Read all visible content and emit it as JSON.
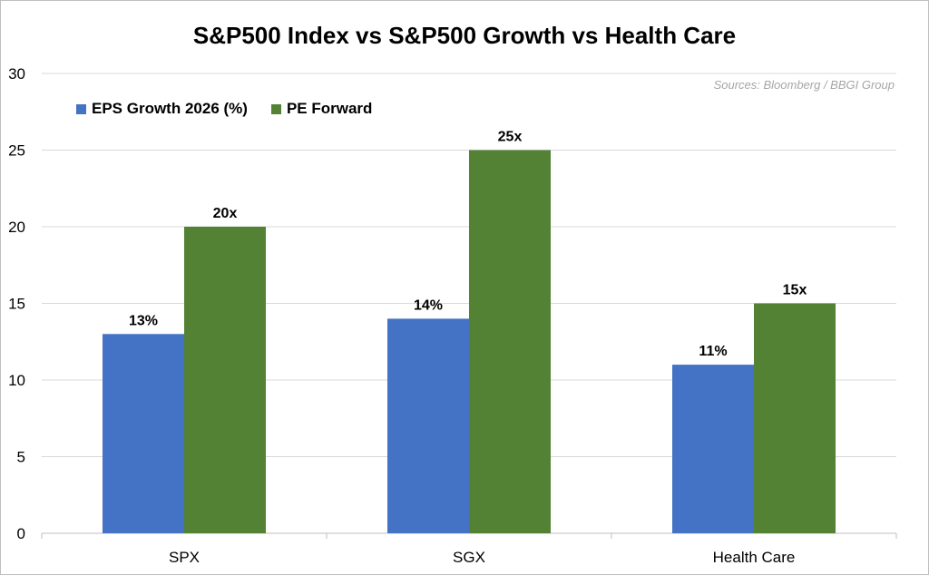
{
  "chart_data": {
    "type": "bar",
    "title": "S&P500 Index vs S&P500 Growth vs Health Care",
    "source": "Sources: Bloomberg / BBGI Group",
    "categories": [
      "SPX",
      "SGX",
      "Health Care"
    ],
    "ylim": [
      0,
      30
    ],
    "yticks": [
      0,
      5,
      10,
      15,
      20,
      25,
      30
    ],
    "grid": true,
    "legend_position": "top-left",
    "series": [
      {
        "name": "EPS Growth 2026 (%)",
        "color": "#4472c4",
        "values": [
          13,
          14,
          11
        ],
        "labels": [
          "13%",
          "14%",
          "11%"
        ]
      },
      {
        "name": "PE Forward",
        "color": "#548235",
        "values": [
          20,
          25,
          15
        ],
        "labels": [
          "20x",
          "25x",
          "15x"
        ]
      }
    ]
  }
}
